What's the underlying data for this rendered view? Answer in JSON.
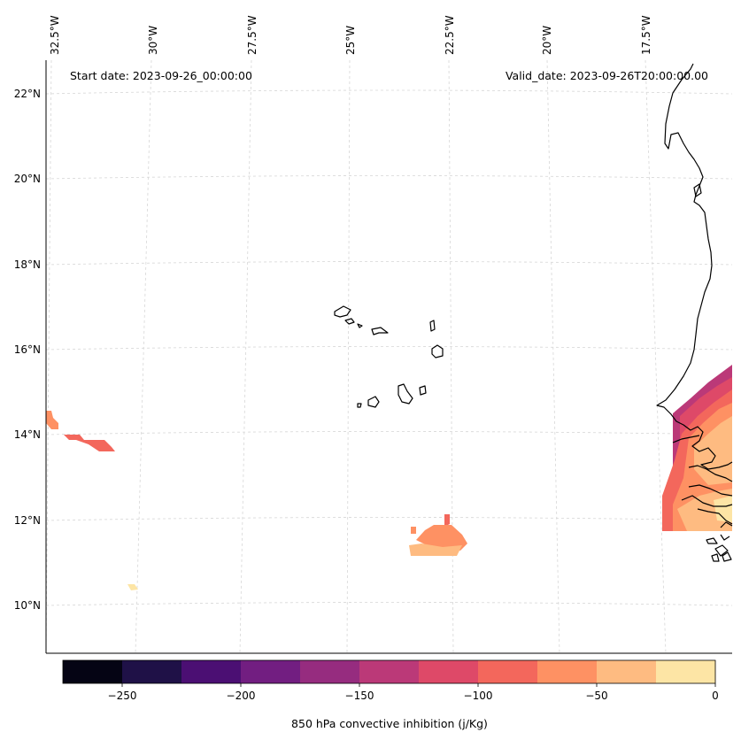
{
  "header": {
    "start_date": "Start date: 2023-09-26_00:00:00",
    "valid_date": "Valid_date: 2023-09-26T20:00:00.00"
  },
  "axes": {
    "lon_labels": [
      "32.5°W",
      "30°W",
      "27.5°W",
      "25°W",
      "22.5°W",
      "20°W",
      "17.5°W"
    ],
    "lat_labels": [
      "22°N",
      "20°N",
      "18°N",
      "16°N",
      "14°N",
      "12°N",
      "10°N"
    ]
  },
  "colorbar": {
    "label": "850 hPa convective inhibition (j/Kg)",
    "tick_labels": [
      "−250",
      "−200",
      "−150",
      "−100",
      "−50",
      "0"
    ],
    "bins": [
      -275,
      -250,
      -225,
      -200,
      -175,
      -150,
      -125,
      -100,
      -75,
      -50,
      -25,
      0
    ],
    "colors": [
      "#050414",
      "#1f1147",
      "#4b0f73",
      "#721e81",
      "#962c7f",
      "#bb3978",
      "#de4968",
      "#f3675c",
      "#fe9163",
      "#febb81",
      "#fde5a5"
    ]
  },
  "map_features": {
    "projection_extent": "32.5°W–16°W, 9°N–22.5°N",
    "coastline_color": "#000000",
    "gridline_style": "dashed light grey"
  }
}
